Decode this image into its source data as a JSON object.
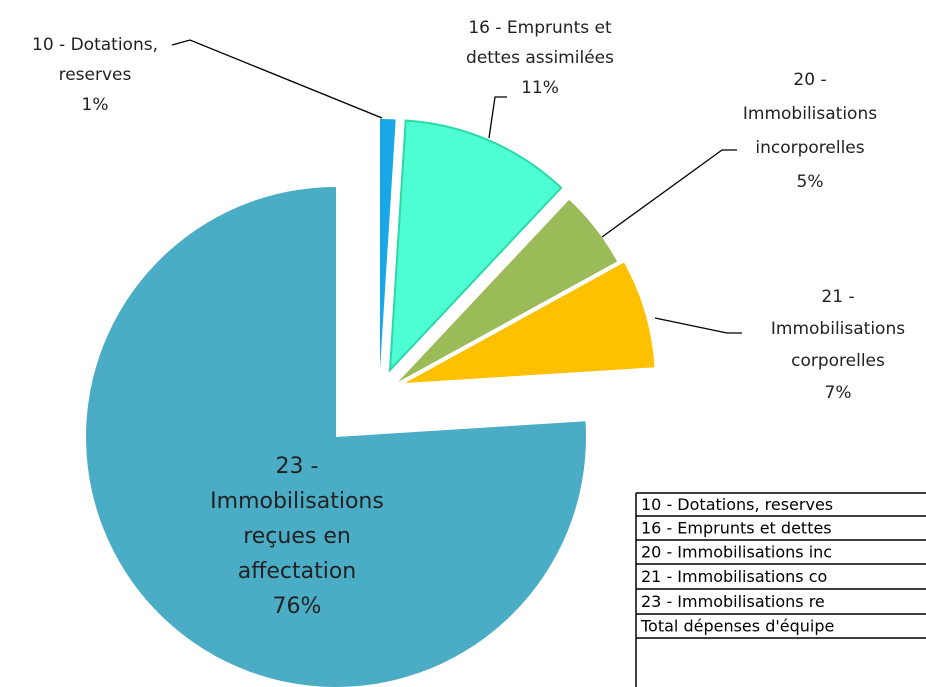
{
  "chart_data": {
    "type": "pie",
    "categories": [
      [
        "10 - Dotations,",
        "reserves"
      ],
      [
        "16 - Emprunts et",
        "dettes assimilées"
      ],
      [
        "20 -",
        "Immobilisations",
        "incorporelles"
      ],
      [
        "21 -",
        "Immobilisations",
        "corporelles"
      ],
      [
        "23 -",
        "Immobilisations",
        "reçues en",
        "affectation"
      ]
    ],
    "values": [
      1,
      11,
      5,
      7,
      76
    ],
    "value_labels": [
      "1%",
      "11%",
      "5%",
      "7%",
      "76%"
    ],
    "colors": [
      "#1aa7e8",
      "#4dffd2",
      "#9bbb59",
      "#ffc000",
      "#4bacc6"
    ]
  },
  "table": {
    "rows": [
      "10 - Dotations, reserves",
      "16 - Emprunts et dettes",
      "20 - Immobilisations inc",
      "21 - Immobilisations co",
      "23 - Immobilisations re",
      "Total dépenses d'équipe"
    ]
  }
}
